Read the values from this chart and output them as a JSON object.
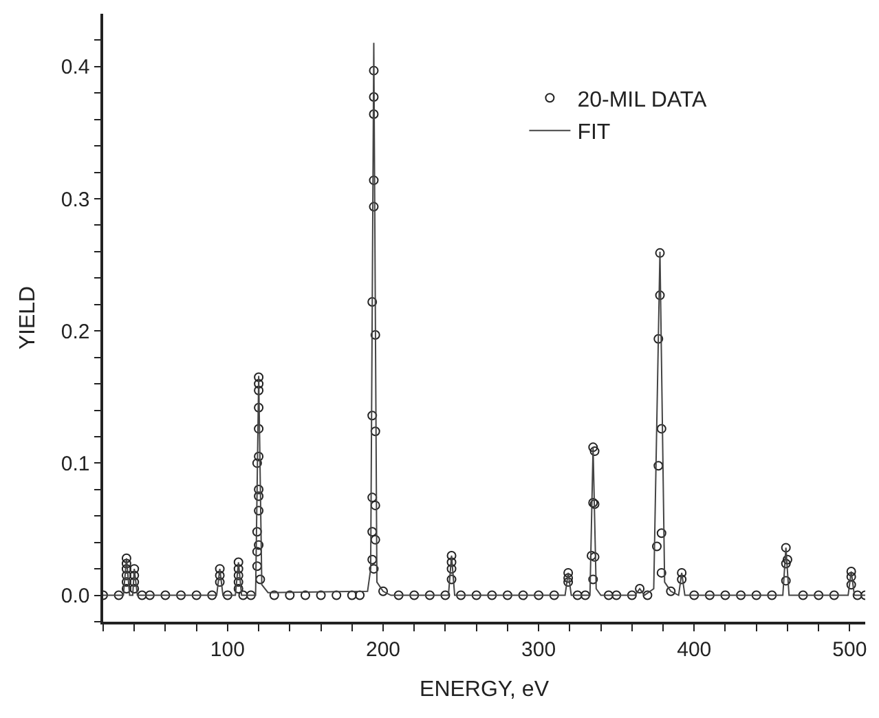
{
  "chart_data": {
    "type": "scatter",
    "xlabel": "ENERGY, eV",
    "ylabel": "YIELD",
    "xlim": [
      20,
      510
    ],
    "ylim": [
      -0.02,
      0.44
    ],
    "xticks": [
      {
        "value": 20,
        "label": null
      },
      {
        "value": 40,
        "label": null
      },
      {
        "value": 60,
        "label": null
      },
      {
        "value": 80,
        "label": null
      },
      100,
      {
        "value": 120,
        "label": null
      },
      {
        "value": 140,
        "label": null
      },
      {
        "value": 160,
        "label": null
      },
      {
        "value": 180,
        "label": null
      },
      200,
      {
        "value": 220,
        "label": null
      },
      {
        "value": 240,
        "label": null
      },
      {
        "value": 260,
        "label": null
      },
      {
        "value": 280,
        "label": null
      },
      300,
      {
        "value": 320,
        "label": null
      },
      {
        "value": 340,
        "label": null
      },
      {
        "value": 360,
        "label": null
      },
      {
        "value": 380,
        "label": null
      },
      400,
      {
        "value": 420,
        "label": null
      },
      {
        "value": 440,
        "label": null
      },
      {
        "value": 460,
        "label": null
      },
      {
        "value": 480,
        "label": null
      },
      500
    ],
    "yticks": [
      {
        "value": -0.02,
        "label": null
      },
      {
        "value": 0,
        "label": "0.0"
      },
      {
        "value": 0.02,
        "label": null
      },
      {
        "value": 0.04,
        "label": null
      },
      {
        "value": 0.06,
        "label": null
      },
      {
        "value": 0.08,
        "label": null
      },
      0.1,
      {
        "value": 0.12,
        "label": null
      },
      {
        "value": 0.14,
        "label": null
      },
      {
        "value": 0.16,
        "label": null
      },
      {
        "value": 0.18,
        "label": null
      },
      0.2,
      {
        "value": 0.22,
        "label": null
      },
      {
        "value": 0.24,
        "label": null
      },
      {
        "value": 0.26,
        "label": null
      },
      {
        "value": 0.28,
        "label": null
      },
      0.3,
      {
        "value": 0.32,
        "label": null
      },
      {
        "value": 0.34,
        "label": null
      },
      {
        "value": 0.36,
        "label": null
      },
      {
        "value": 0.38,
        "label": null
      },
      0.4,
      {
        "value": 0.42,
        "label": null
      }
    ],
    "legend": "top right",
    "series": [
      {
        "name": "20-MIL DATA",
        "marker": "circle",
        "color": "#222222",
        "x": [
          20,
          30,
          45,
          50,
          60,
          70,
          80,
          90,
          100,
          110,
          115,
          130,
          140,
          150,
          160,
          170,
          180,
          185,
          200,
          210,
          220,
          230,
          240,
          250,
          260,
          270,
          280,
          290,
          300,
          310,
          325,
          330,
          345,
          350,
          360,
          365,
          370,
          385,
          400,
          410,
          420,
          430,
          440,
          450,
          470,
          480,
          490,
          505,
          510,
          35,
          35,
          35,
          35,
          35,
          35,
          40,
          40,
          40,
          40,
          95,
          95,
          95,
          107,
          107,
          107,
          107,
          107,
          120,
          120,
          120,
          120,
          120,
          120,
          119,
          120,
          120,
          120,
          119,
          120,
          119,
          119,
          121,
          194,
          194,
          194,
          194,
          194,
          193,
          195,
          193,
          195,
          193,
          195,
          193,
          195,
          193,
          194,
          244,
          244,
          244,
          244,
          319,
          319,
          319,
          335,
          336,
          335,
          336,
          334,
          336,
          335,
          378,
          378,
          377,
          379,
          377,
          379,
          376,
          379,
          392,
          392,
          459,
          460,
          459,
          459,
          501,
          501,
          501
        ],
        "values": [
          0,
          0,
          0,
          0,
          0,
          0,
          0,
          0,
          0,
          0,
          0,
          0,
          0,
          0,
          0,
          0,
          0,
          0,
          0.003,
          0,
          0,
          0,
          0,
          0,
          0,
          0,
          0,
          0,
          0,
          0,
          0,
          0,
          0,
          0,
          0,
          0.005,
          0,
          0.003,
          0,
          0,
          0,
          0,
          0,
          0,
          0,
          0,
          0,
          0,
          0,
          0.028,
          0.024,
          0.02,
          0.015,
          0.01,
          0.005,
          0.02,
          0.015,
          0.01,
          0.005,
          0.02,
          0.015,
          0.01,
          0.025,
          0.02,
          0.015,
          0.01,
          0.005,
          0.165,
          0.16,
          0.155,
          0.142,
          0.126,
          0.105,
          0.1,
          0.08,
          0.075,
          0.064,
          0.048,
          0.038,
          0.033,
          0.022,
          0.012,
          0.397,
          0.377,
          0.364,
          0.314,
          0.294,
          0.222,
          0.197,
          0.136,
          0.124,
          0.074,
          0.068,
          0.048,
          0.042,
          0.027,
          0.02,
          0.03,
          0.025,
          0.02,
          0.012,
          0.017,
          0.013,
          0.01,
          0.112,
          0.109,
          0.07,
          0.069,
          0.03,
          0.029,
          0.012,
          0.259,
          0.227,
          0.194,
          0.126,
          0.098,
          0.047,
          0.037,
          0.017,
          0.017,
          0.012,
          0.036,
          0.027,
          0.024,
          0.011,
          0.018,
          0.014,
          0.008
        ]
      },
      {
        "name": "FIT",
        "type": "line",
        "marker": "none",
        "line_style": "solid",
        "color": "#444444",
        "x": [
          20,
          33,
          35,
          37,
          39,
          40,
          42,
          93,
          95,
          97,
          105,
          107,
          109,
          118,
          120,
          122,
          126,
          190,
          192,
          194,
          196,
          200,
          205,
          242,
          244,
          246,
          317,
          319,
          321,
          333,
          335,
          337,
          340,
          362,
          365,
          368,
          374,
          378,
          381,
          385,
          390,
          392,
          394,
          457,
          459,
          461,
          499,
          501,
          503,
          510
        ],
        "values": [
          0,
          0,
          0.028,
          0,
          0,
          0.02,
          0,
          0,
          0.02,
          0,
          0,
          0.025,
          0,
          0,
          0.166,
          0.008,
          0.002,
          0.003,
          0.02,
          0.418,
          0.01,
          0.003,
          0,
          0,
          0.03,
          0,
          0,
          0.017,
          0,
          0,
          0.112,
          0.005,
          0,
          0,
          0.005,
          0,
          0.005,
          0.26,
          0.01,
          0.003,
          0,
          0.017,
          0,
          0,
          0.036,
          0,
          0,
          0.018,
          0,
          0
        ]
      }
    ]
  }
}
